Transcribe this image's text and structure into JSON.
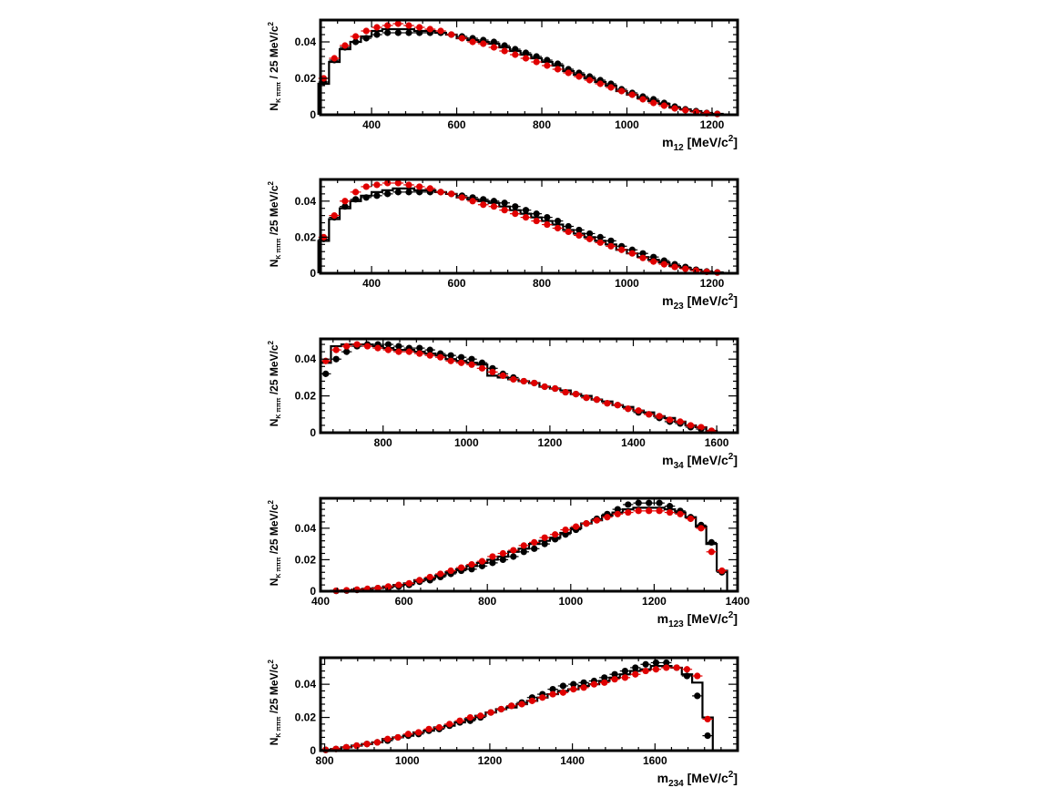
{
  "chart_data": [
    {
      "type": "scatter",
      "xlabel_main": "m",
      "xlabel_sub": "12",
      "xlabel_unit": " [MeV/c",
      "xlabel_sup": "2",
      "xlabel_close": "]",
      "ylabel_main": "N",
      "ylabel_sub": "K πππ",
      "ylabel_unit": " / 25 MeV/c",
      "ylabel_sup": "2",
      "xlim": [
        280,
        1260
      ],
      "ylim": [
        0,
        0.052
      ],
      "xticks": [
        400,
        600,
        800,
        1000,
        1200
      ],
      "xtick_labels": [
        "400",
        "600",
        "800",
        "1000",
        "1200"
      ],
      "yticks": [
        0,
        0.02,
        0.04
      ],
      "ytick_labels": [
        "0",
        "0.02",
        "0.04"
      ],
      "grid": false,
      "bin_width": 25,
      "x": [
        287.5,
        312.5,
        337.5,
        362.5,
        387.5,
        412.5,
        437.5,
        462.5,
        487.5,
        512.5,
        537.5,
        562.5,
        587.5,
        612.5,
        637.5,
        662.5,
        687.5,
        712.5,
        737.5,
        762.5,
        787.5,
        812.5,
        837.5,
        862.5,
        887.5,
        912.5,
        937.5,
        962.5,
        987.5,
        1012.5,
        1037.5,
        1062.5,
        1087.5,
        1112.5,
        1137.5,
        1162.5,
        1187.5,
        1212.5
      ],
      "series": [
        {
          "role": "histogram",
          "color": "#000000",
          "values": [
            0.017,
            0.029,
            0.036,
            0.04,
            0.043,
            0.046,
            0.047,
            0.047,
            0.047,
            0.046,
            0.046,
            0.045,
            0.044,
            0.042,
            0.041,
            0.04,
            0.039,
            0.037,
            0.035,
            0.033,
            0.031,
            0.029,
            0.027,
            0.024,
            0.022,
            0.02,
            0.018,
            0.016,
            0.013,
            0.011,
            0.009,
            0.0075,
            0.006,
            0.004,
            0.003,
            0.002,
            0.001,
            0.0005
          ]
        },
        {
          "role": "data",
          "color": "#000000",
          "values": [
            0.018,
            0.03,
            0.037,
            0.04,
            0.042,
            0.044,
            0.045,
            0.045,
            0.045,
            0.045,
            0.045,
            0.045,
            0.044,
            0.043,
            0.042,
            0.041,
            0.04,
            0.038,
            0.036,
            0.034,
            0.032,
            0.03,
            0.028,
            0.025,
            0.023,
            0.021,
            0.019,
            0.017,
            0.014,
            0.012,
            0.01,
            0.0085,
            0.0065,
            0.0045,
            0.003,
            0.002,
            0.001,
            0.0005
          ]
        },
        {
          "role": "model",
          "color": "#e00000",
          "values": [
            0.02,
            0.031,
            0.038,
            0.043,
            0.046,
            0.048,
            0.049,
            0.05,
            0.049,
            0.048,
            0.047,
            0.046,
            0.044,
            0.042,
            0.04,
            0.039,
            0.037,
            0.035,
            0.033,
            0.031,
            0.029,
            0.027,
            0.025,
            0.023,
            0.021,
            0.019,
            0.017,
            0.015,
            0.013,
            0.011,
            0.0085,
            0.0065,
            0.005,
            0.0035,
            0.0025,
            0.0015,
            0.0008,
            0.0004
          ]
        }
      ]
    },
    {
      "type": "scatter",
      "xlabel_main": "m",
      "xlabel_sub": "23",
      "xlabel_unit": " [MeV/c",
      "xlabel_sup": "2",
      "xlabel_close": "]",
      "ylabel_main": "N",
      "ylabel_sub": "K πππ",
      "ylabel_unit": " /25 MeV/c",
      "ylabel_sup": "2",
      "xlim": [
        280,
        1260
      ],
      "ylim": [
        0,
        0.052
      ],
      "xticks": [
        400,
        600,
        800,
        1000,
        1200
      ],
      "xtick_labels": [
        "400",
        "600",
        "800",
        "1000",
        "1200"
      ],
      "yticks": [
        0,
        0.02,
        0.04
      ],
      "ytick_labels": [
        "0",
        "0.02",
        "0.04"
      ],
      "grid": false,
      "bin_width": 25,
      "x": [
        287.5,
        312.5,
        337.5,
        362.5,
        387.5,
        412.5,
        437.5,
        462.5,
        487.5,
        512.5,
        537.5,
        562.5,
        587.5,
        612.5,
        637.5,
        662.5,
        687.5,
        712.5,
        737.5,
        762.5,
        787.5,
        812.5,
        837.5,
        862.5,
        887.5,
        912.5,
        937.5,
        962.5,
        987.5,
        1012.5,
        1037.5,
        1062.5,
        1087.5,
        1112.5,
        1137.5,
        1162.5,
        1187.5,
        1212.5
      ],
      "series": [
        {
          "role": "histogram",
          "color": "#000000",
          "values": [
            0.018,
            0.03,
            0.036,
            0.04,
            0.043,
            0.045,
            0.046,
            0.047,
            0.047,
            0.046,
            0.046,
            0.045,
            0.044,
            0.042,
            0.041,
            0.04,
            0.039,
            0.037,
            0.035,
            0.033,
            0.031,
            0.029,
            0.027,
            0.024,
            0.022,
            0.02,
            0.018,
            0.016,
            0.013,
            0.011,
            0.009,
            0.0075,
            0.006,
            0.004,
            0.003,
            0.002,
            0.001,
            0.0005
          ]
        },
        {
          "role": "data",
          "color": "#000000",
          "values": [
            0.019,
            0.031,
            0.037,
            0.041,
            0.042,
            0.043,
            0.044,
            0.045,
            0.045,
            0.045,
            0.045,
            0.045,
            0.044,
            0.043,
            0.042,
            0.041,
            0.04,
            0.039,
            0.037,
            0.035,
            0.033,
            0.031,
            0.029,
            0.026,
            0.024,
            0.022,
            0.02,
            0.018,
            0.015,
            0.013,
            0.011,
            0.009,
            0.007,
            0.005,
            0.0035,
            0.002,
            0.001,
            0.0005
          ]
        },
        {
          "role": "model",
          "color": "#e00000",
          "values": [
            0.02,
            0.032,
            0.04,
            0.045,
            0.048,
            0.049,
            0.05,
            0.05,
            0.049,
            0.048,
            0.047,
            0.045,
            0.044,
            0.042,
            0.04,
            0.038,
            0.037,
            0.035,
            0.033,
            0.031,
            0.029,
            0.027,
            0.025,
            0.023,
            0.021,
            0.019,
            0.017,
            0.015,
            0.013,
            0.011,
            0.0085,
            0.0065,
            0.005,
            0.0035,
            0.0025,
            0.0015,
            0.0008,
            0.0004
          ]
        }
      ]
    },
    {
      "type": "scatter",
      "xlabel_main": "m",
      "xlabel_sub": "34",
      "xlabel_unit": " [MeV/c",
      "xlabel_sup": "2",
      "xlabel_close": "]",
      "ylabel_main": "N",
      "ylabel_sub": "K πππ",
      "ylabel_unit": " /25 MeV/c",
      "ylabel_sup": "2",
      "xlim": [
        650,
        1650
      ],
      "ylim": [
        0,
        0.051
      ],
      "xticks": [
        800,
        1000,
        1200,
        1400,
        1600
      ],
      "xtick_labels": [
        "800",
        "1000",
        "1200",
        "1400",
        "1600"
      ],
      "yticks": [
        0,
        0.02,
        0.04
      ],
      "ytick_labels": [
        "0",
        "0.02",
        "0.04"
      ],
      "grid": false,
      "bin_width": 25,
      "x": [
        662.5,
        687.5,
        712.5,
        737.5,
        762.5,
        787.5,
        812.5,
        837.5,
        862.5,
        887.5,
        912.5,
        937.5,
        962.5,
        987.5,
        1012.5,
        1037.5,
        1062.5,
        1087.5,
        1112.5,
        1137.5,
        1162.5,
        1187.5,
        1212.5,
        1237.5,
        1262.5,
        1287.5,
        1312.5,
        1337.5,
        1362.5,
        1387.5,
        1412.5,
        1437.5,
        1462.5,
        1487.5,
        1512.5,
        1537.5,
        1562.5,
        1587.5
      ],
      "series": [
        {
          "role": "histogram",
          "color": "#000000",
          "values": [
            0.038,
            0.047,
            0.048,
            0.048,
            0.048,
            0.047,
            0.046,
            0.045,
            0.045,
            0.044,
            0.043,
            0.042,
            0.04,
            0.039,
            0.038,
            0.037,
            0.031,
            0.03,
            0.029,
            0.028,
            0.027,
            0.025,
            0.024,
            0.023,
            0.021,
            0.02,
            0.018,
            0.017,
            0.015,
            0.014,
            0.012,
            0.011,
            0.009,
            0.008,
            0.006,
            0.004,
            0.003,
            0.001
          ]
        },
        {
          "role": "data",
          "color": "#000000",
          "values": [
            0.032,
            0.04,
            0.044,
            0.047,
            0.048,
            0.048,
            0.048,
            0.047,
            0.046,
            0.046,
            0.045,
            0.043,
            0.042,
            0.041,
            0.04,
            0.038,
            0.035,
            0.032,
            0.03,
            0.028,
            0.027,
            0.025,
            0.024,
            0.022,
            0.021,
            0.019,
            0.018,
            0.016,
            0.015,
            0.013,
            0.011,
            0.01,
            0.008,
            0.006,
            0.005,
            0.003,
            0.002,
            0.001
          ]
        },
        {
          "role": "model",
          "color": "#e00000",
          "values": [
            0.039,
            0.045,
            0.047,
            0.048,
            0.047,
            0.046,
            0.045,
            0.044,
            0.044,
            0.043,
            0.042,
            0.041,
            0.039,
            0.038,
            0.037,
            0.035,
            0.033,
            0.031,
            0.029,
            0.028,
            0.027,
            0.025,
            0.024,
            0.022,
            0.021,
            0.019,
            0.018,
            0.016,
            0.015,
            0.013,
            0.012,
            0.01,
            0.009,
            0.007,
            0.006,
            0.004,
            0.003,
            0.001
          ]
        }
      ]
    },
    {
      "type": "scatter",
      "xlabel_main": "m",
      "xlabel_sub": "123",
      "xlabel_unit": " [MeV/c",
      "xlabel_sup": "2",
      "xlabel_close": "]",
      "ylabel_main": "N",
      "ylabel_sub": "K πππ",
      "ylabel_unit": " /25 MeV/c",
      "ylabel_sup": "2",
      "xlim": [
        400,
        1400
      ],
      "ylim": [
        0,
        0.059
      ],
      "xticks": [
        400,
        600,
        800,
        1000,
        1200,
        1400
      ],
      "xtick_labels": [
        "400",
        "600",
        "800",
        "1000",
        "1200",
        "1400"
      ],
      "yticks": [
        0,
        0.02,
        0.04
      ],
      "ytick_labels": [
        "0",
        "0.02",
        "0.04"
      ],
      "grid": false,
      "bin_width": 25,
      "x": [
        437.5,
        462.5,
        487.5,
        512.5,
        537.5,
        562.5,
        587.5,
        612.5,
        637.5,
        662.5,
        687.5,
        712.5,
        737.5,
        762.5,
        787.5,
        812.5,
        837.5,
        862.5,
        887.5,
        912.5,
        937.5,
        962.5,
        987.5,
        1012.5,
        1037.5,
        1062.5,
        1087.5,
        1112.5,
        1137.5,
        1162.5,
        1187.5,
        1212.5,
        1237.5,
        1262.5,
        1287.5,
        1312.5,
        1337.5,
        1362.5
      ],
      "series": [
        {
          "role": "histogram",
          "color": "#000000",
          "values": [
            0.0003,
            0.0005,
            0.001,
            0.0015,
            0.002,
            0.003,
            0.004,
            0.005,
            0.007,
            0.008,
            0.01,
            0.012,
            0.014,
            0.016,
            0.018,
            0.02,
            0.022,
            0.025,
            0.027,
            0.03,
            0.032,
            0.034,
            0.037,
            0.04,
            0.043,
            0.045,
            0.048,
            0.05,
            0.052,
            0.053,
            0.053,
            0.053,
            0.052,
            0.05,
            0.047,
            0.041,
            0.03,
            0.013
          ]
        },
        {
          "role": "data",
          "color": "#000000",
          "values": [
            0.0002,
            0.0004,
            0.0008,
            0.0012,
            0.002,
            0.002,
            0.003,
            0.004,
            0.006,
            0.007,
            0.009,
            0.011,
            0.013,
            0.014,
            0.016,
            0.018,
            0.02,
            0.022,
            0.025,
            0.027,
            0.03,
            0.033,
            0.036,
            0.039,
            0.043,
            0.046,
            0.049,
            0.052,
            0.055,
            0.056,
            0.056,
            0.056,
            0.054,
            0.051,
            0.047,
            0.042,
            0.031,
            0.012
          ]
        },
        {
          "role": "model",
          "color": "#e00000",
          "values": [
            0.0003,
            0.0006,
            0.001,
            0.0015,
            0.002,
            0.003,
            0.004,
            0.005,
            0.007,
            0.009,
            0.011,
            0.013,
            0.015,
            0.017,
            0.019,
            0.022,
            0.024,
            0.026,
            0.029,
            0.031,
            0.034,
            0.036,
            0.039,
            0.041,
            0.043,
            0.045,
            0.047,
            0.049,
            0.05,
            0.051,
            0.051,
            0.051,
            0.05,
            0.049,
            0.046,
            0.04,
            0.025,
            0.013
          ]
        }
      ]
    },
    {
      "type": "scatter",
      "xlabel_main": "m",
      "xlabel_sub": "234",
      "xlabel_unit": " [MeV/c",
      "xlabel_sup": "2",
      "xlabel_close": "]",
      "ylabel_main": "N",
      "ylabel_sub": "K πππ",
      "ylabel_unit": " /25 MeV/c",
      "ylabel_sup": "2",
      "xlim": [
        790,
        1800
      ],
      "ylim": [
        0,
        0.056
      ],
      "xticks": [
        800,
        1000,
        1200,
        1400,
        1600
      ],
      "xtick_labels": [
        "800",
        "1000",
        "1200",
        "1400",
        "1600"
      ],
      "yticks": [
        0,
        0.02,
        0.04
      ],
      "ytick_labels": [
        "0",
        "0.02",
        "0.04"
      ],
      "grid": false,
      "bin_width": 25,
      "x": [
        802.5,
        827.5,
        852.5,
        877.5,
        902.5,
        927.5,
        952.5,
        977.5,
        1002.5,
        1027.5,
        1052.5,
        1077.5,
        1102.5,
        1127.5,
        1152.5,
        1177.5,
        1202.5,
        1227.5,
        1252.5,
        1277.5,
        1302.5,
        1327.5,
        1352.5,
        1377.5,
        1402.5,
        1427.5,
        1452.5,
        1477.5,
        1502.5,
        1527.5,
        1552.5,
        1577.5,
        1602.5,
        1627.5,
        1652.5,
        1677.5,
        1702.5,
        1727.5
      ],
      "series": [
        {
          "role": "histogram",
          "color": "#000000",
          "values": [
            0.0005,
            0.001,
            0.002,
            0.003,
            0.004,
            0.005,
            0.007,
            0.008,
            0.009,
            0.011,
            0.012,
            0.014,
            0.015,
            0.017,
            0.019,
            0.021,
            0.023,
            0.025,
            0.026,
            0.028,
            0.03,
            0.032,
            0.034,
            0.036,
            0.037,
            0.039,
            0.04,
            0.042,
            0.044,
            0.046,
            0.048,
            0.049,
            0.051,
            0.051,
            0.05,
            0.046,
            0.041,
            0.02
          ]
        },
        {
          "role": "data",
          "color": "#000000",
          "values": [
            0.0004,
            0.001,
            0.002,
            0.003,
            0.004,
            0.005,
            0.006,
            0.008,
            0.009,
            0.01,
            0.012,
            0.013,
            0.015,
            0.017,
            0.018,
            0.02,
            0.023,
            0.025,
            0.027,
            0.029,
            0.032,
            0.034,
            0.037,
            0.039,
            0.04,
            0.041,
            0.042,
            0.044,
            0.046,
            0.048,
            0.05,
            0.052,
            0.053,
            0.053,
            0.05,
            0.045,
            0.033,
            0.009
          ]
        },
        {
          "role": "model",
          "color": "#e00000",
          "values": [
            0.0005,
            0.001,
            0.002,
            0.003,
            0.004,
            0.005,
            0.007,
            0.008,
            0.01,
            0.011,
            0.013,
            0.014,
            0.016,
            0.018,
            0.02,
            0.021,
            0.023,
            0.025,
            0.027,
            0.028,
            0.03,
            0.032,
            0.034,
            0.035,
            0.037,
            0.038,
            0.04,
            0.041,
            0.043,
            0.044,
            0.046,
            0.048,
            0.049,
            0.05,
            0.05,
            0.049,
            0.045,
            0.019
          ]
        }
      ]
    }
  ]
}
